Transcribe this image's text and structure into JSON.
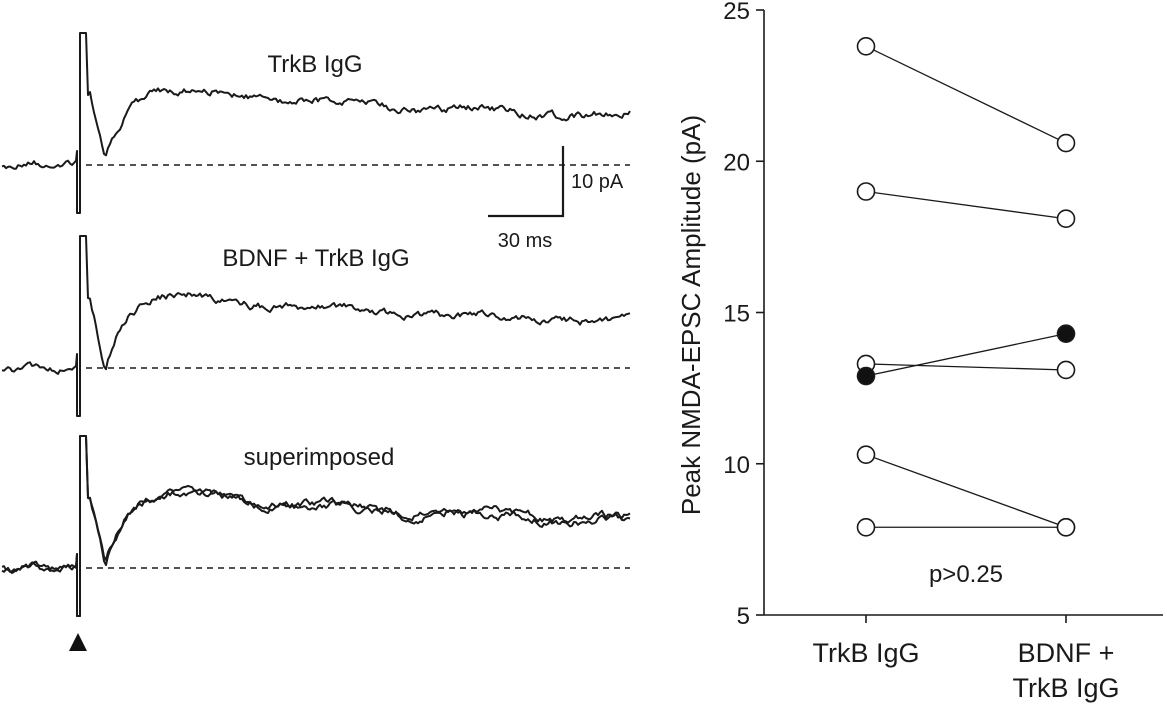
{
  "traces_panel": {
    "labels": {
      "trace_1": "TrkB IgG",
      "trace_2": "BDNF + TrkB IgG",
      "trace_3": "superimposed"
    },
    "scalebar": {
      "vertical_label": "10 pA",
      "horizontal_label": "30 ms"
    },
    "stimulus_marker": "triangle"
  },
  "chart_data": {
    "type": "scatter",
    "subtype": "paired dot plot",
    "categories": [
      "TrkB IgG",
      "BDNF +\nTrkB IgG"
    ],
    "category_lines": [
      "TrkB IgG",
      "BDNF +",
      "TrkB IgG"
    ],
    "ylabel": "Peak NMDA-EPSC Amplitude (pA)",
    "xlabel": "",
    "ylim": [
      5,
      25
    ],
    "yticks": [
      5,
      10,
      15,
      20,
      25
    ],
    "annotation": "p>0.25",
    "grid": false,
    "pairs": [
      {
        "values": [
          23.8,
          20.6
        ],
        "marker": "open"
      },
      {
        "values": [
          19.0,
          18.1
        ],
        "marker": "open"
      },
      {
        "values": [
          13.3,
          13.1
        ],
        "marker": "open"
      },
      {
        "values": [
          12.9,
          14.3
        ],
        "marker": "filled"
      },
      {
        "values": [
          10.3,
          7.9
        ],
        "marker": "open"
      },
      {
        "values": [
          7.9,
          7.9
        ],
        "marker": "open"
      }
    ]
  }
}
